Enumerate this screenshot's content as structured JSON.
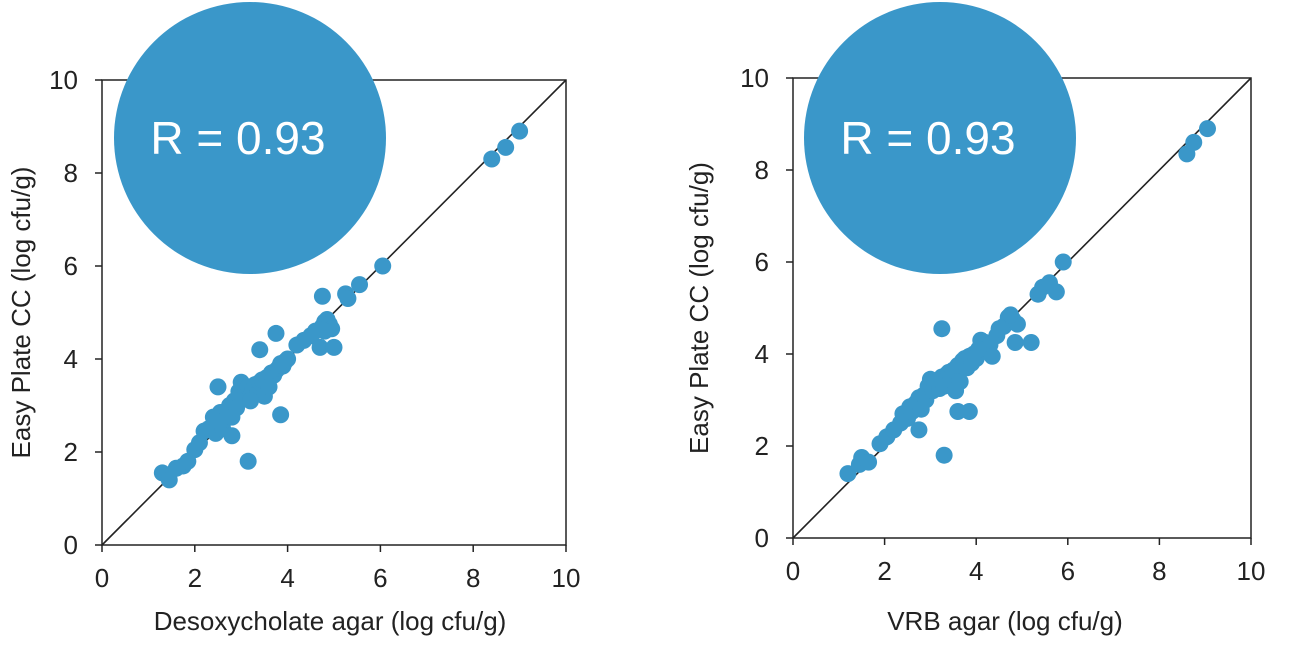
{
  "chart_data": [
    {
      "type": "scatter",
      "title": "",
      "xlabel": "Desoxycholate agar (log cfu/g)",
      "ylabel": "Easy Plate CC  (log cfu/g)",
      "xlim": [
        0,
        10
      ],
      "ylim": [
        0,
        10
      ],
      "xticks": [
        "0",
        "2",
        "4",
        "6",
        "8",
        "10"
      ],
      "yticks": [
        "0",
        "2",
        "4",
        "6",
        "8",
        "10"
      ],
      "grid": false,
      "legend": "none",
      "reference_line": {
        "x": [
          0,
          10
        ],
        "y": [
          0,
          10
        ]
      },
      "annotation": "R = 0.93",
      "point_color": "#3a97c9",
      "badge_color": "#3a97c9",
      "series": [
        {
          "x": [
            1.3,
            1.45,
            1.6,
            1.75,
            1.85,
            2.0,
            2.1,
            2.2,
            2.3,
            2.4,
            2.45,
            2.5,
            2.55,
            2.6,
            2.65,
            2.7,
            2.75,
            2.8,
            2.85,
            2.9,
            2.95,
            3.0,
            3.05,
            3.1,
            3.15,
            3.2,
            3.25,
            3.3,
            3.35,
            3.4,
            3.45,
            3.5,
            3.55,
            3.6,
            3.65,
            3.7,
            3.75,
            3.8,
            3.85,
            3.9,
            3.95,
            4.0,
            2.8,
            3.2,
            3.4,
            3.75,
            3.85,
            2.5,
            4.2,
            4.35,
            4.5,
            4.6,
            4.75,
            4.8,
            4.85,
            4.9,
            4.95,
            4.7,
            5.0,
            4.8,
            4.75,
            5.25,
            5.3,
            5.55,
            6.05,
            8.4,
            8.7,
            9.0,
            3.15
          ],
          "y": [
            1.55,
            1.4,
            1.65,
            1.7,
            1.8,
            2.05,
            2.2,
            2.45,
            2.5,
            2.75,
            2.4,
            2.6,
            2.85,
            2.5,
            2.7,
            2.9,
            3.0,
            2.75,
            3.1,
            2.95,
            3.3,
            3.5,
            3.15,
            3.3,
            3.4,
            3.2,
            3.35,
            3.45,
            3.25,
            3.5,
            3.55,
            3.2,
            3.6,
            3.4,
            3.7,
            3.65,
            3.75,
            3.8,
            3.9,
            3.85,
            3.95,
            4.0,
            2.35,
            3.1,
            4.2,
            4.55,
            2.8,
            3.4,
            4.3,
            4.4,
            4.5,
            4.6,
            4.7,
            4.8,
            4.85,
            4.75,
            4.65,
            4.25,
            4.25,
            4.6,
            5.35,
            5.4,
            5.3,
            5.6,
            6.0,
            8.3,
            8.55,
            8.9,
            1.8
          ]
        }
      ]
    },
    {
      "type": "scatter",
      "title": "",
      "xlabel": "VRB agar (log cfu/g)",
      "ylabel": "Easy Plate CC  (log cfu/g)",
      "xlim": [
        0,
        10
      ],
      "ylim": [
        0,
        10
      ],
      "xticks": [
        "0",
        "2",
        "4",
        "6",
        "8",
        "10"
      ],
      "yticks": [
        "0",
        "2",
        "4",
        "6",
        "8",
        "10"
      ],
      "grid": false,
      "legend": "none",
      "reference_line": {
        "x": [
          0,
          10
        ],
        "y": [
          0,
          10
        ]
      },
      "annotation": "R = 0.93",
      "point_color": "#3a97c9",
      "badge_color": "#3a97c9",
      "series": [
        {
          "x": [
            1.2,
            1.45,
            1.5,
            1.65,
            1.9,
            2.05,
            2.2,
            2.35,
            2.4,
            2.5,
            2.55,
            2.6,
            2.65,
            2.7,
            2.75,
            2.8,
            2.85,
            2.9,
            2.95,
            3.0,
            3.05,
            3.1,
            3.15,
            3.2,
            3.25,
            3.3,
            3.35,
            3.4,
            3.45,
            3.5,
            3.55,
            3.6,
            3.65,
            3.7,
            3.75,
            3.8,
            3.85,
            3.9,
            3.95,
            4.0,
            4.1,
            4.15,
            4.2,
            4.3,
            4.35,
            4.45,
            4.5,
            4.6,
            4.7,
            4.8,
            4.85,
            4.9,
            5.2,
            5.35,
            5.45,
            5.6,
            5.75,
            5.9,
            2.75,
            3.6,
            3.85,
            4.75,
            3.25,
            3.3,
            8.6,
            8.75,
            9.05,
            4.05
          ],
          "y": [
            1.4,
            1.6,
            1.75,
            1.65,
            2.05,
            2.2,
            2.35,
            2.5,
            2.7,
            2.6,
            2.85,
            2.75,
            2.9,
            2.95,
            3.05,
            2.8,
            3.1,
            3.0,
            3.3,
            3.45,
            3.2,
            3.35,
            3.4,
            3.25,
            3.5,
            3.3,
            3.55,
            3.6,
            3.45,
            3.65,
            3.2,
            3.75,
            3.4,
            3.85,
            3.9,
            3.7,
            3.95,
            3.8,
            4.0,
            3.9,
            4.3,
            4.1,
            4.25,
            4.2,
            3.95,
            4.4,
            4.55,
            4.6,
            4.8,
            4.75,
            4.25,
            4.65,
            4.25,
            5.3,
            5.45,
            5.55,
            5.35,
            6.0,
            2.35,
            2.75,
            2.75,
            4.85,
            4.55,
            1.8,
            8.35,
            8.6,
            8.9,
            4.1
          ]
        }
      ]
    }
  ]
}
